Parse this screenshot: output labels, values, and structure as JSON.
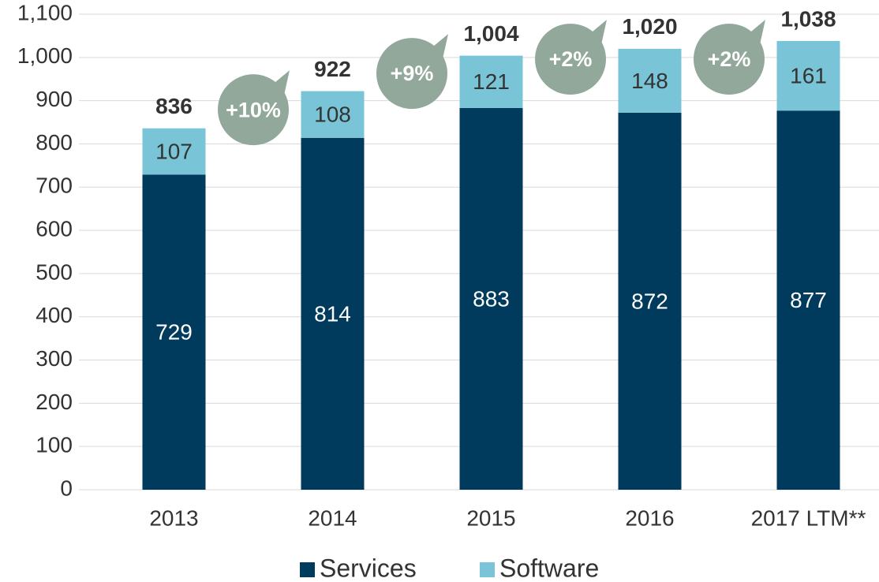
{
  "chart_data": {
    "type": "stacked_bar",
    "categories": [
      "2013",
      "2014",
      "2015",
      "2016",
      "2017 LTM**"
    ],
    "series": [
      {
        "name": "Services",
        "color": "#003a5c",
        "values": [
          729,
          814,
          883,
          872,
          877
        ]
      },
      {
        "name": "Software",
        "color": "#79c4d6",
        "values": [
          107,
          108,
          121,
          148,
          161
        ]
      }
    ],
    "totals": [
      836,
      922,
      1004,
      1020,
      1038
    ],
    "total_labels": [
      "836",
      "922",
      "1,004",
      "1,020",
      "1,038"
    ],
    "annotations": [
      "+10%",
      "+9%",
      "+2%",
      "+2%"
    ],
    "annotation_color": "#91a89b",
    "ylim": [
      0,
      1100
    ],
    "yticks": [
      0,
      100,
      200,
      300,
      400,
      500,
      600,
      700,
      800,
      900,
      {
        "value": 1000,
        "label": "1,000"
      },
      {
        "value": 1100,
        "label": "1,100"
      }
    ],
    "grid": true,
    "legend": "bottom"
  }
}
